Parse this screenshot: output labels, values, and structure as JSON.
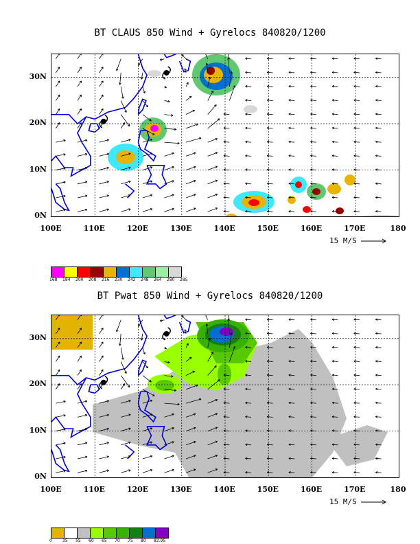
{
  "top": {
    "title": "BT CLAUS 850 Wind + Gyrelocs 840820/1200",
    "y_ticks": [
      "30N",
      "20N",
      "10N",
      "0N"
    ],
    "x_ticks": [
      "100E",
      "110E",
      "120E",
      "130E",
      "140E",
      "150E",
      "160E",
      "170E",
      "180"
    ],
    "ref_vector": "15 M/S",
    "colorbar": {
      "colors": [
        "#ff00ff",
        "#ffff00",
        "#ff0000",
        "#990000",
        "#e8b400",
        "#0070d0",
        "#40e8ff",
        "#60c870",
        "#98f0a0",
        "#d8d8d8"
      ],
      "labels": [
        "168",
        "184",
        "200",
        "208",
        "216",
        "230",
        "242",
        "248",
        "264",
        "280",
        "285"
      ]
    }
  },
  "bottom": {
    "title": "BT Pwat 850 Wind + Gyrelocs 840820/1200",
    "y_ticks": [
      "30N",
      "20N",
      "10N",
      "0N"
    ],
    "x_ticks": [
      "100E",
      "110E",
      "120E",
      "130E",
      "140E",
      "150E",
      "160E",
      "170E",
      "180"
    ],
    "ref_vector": "15 M/S",
    "colorbar": {
      "colors": [
        "#e0b400",
        "#ffffff",
        "#c0c0c0",
        "#98ff00",
        "#58c800",
        "#38b000",
        "#148014",
        "#0070d0",
        "#8000c8"
      ],
      "labels": [
        "0",
        "35",
        "55",
        "60",
        "65",
        "70",
        "75",
        "80",
        "82.95"
      ]
    }
  }
}
